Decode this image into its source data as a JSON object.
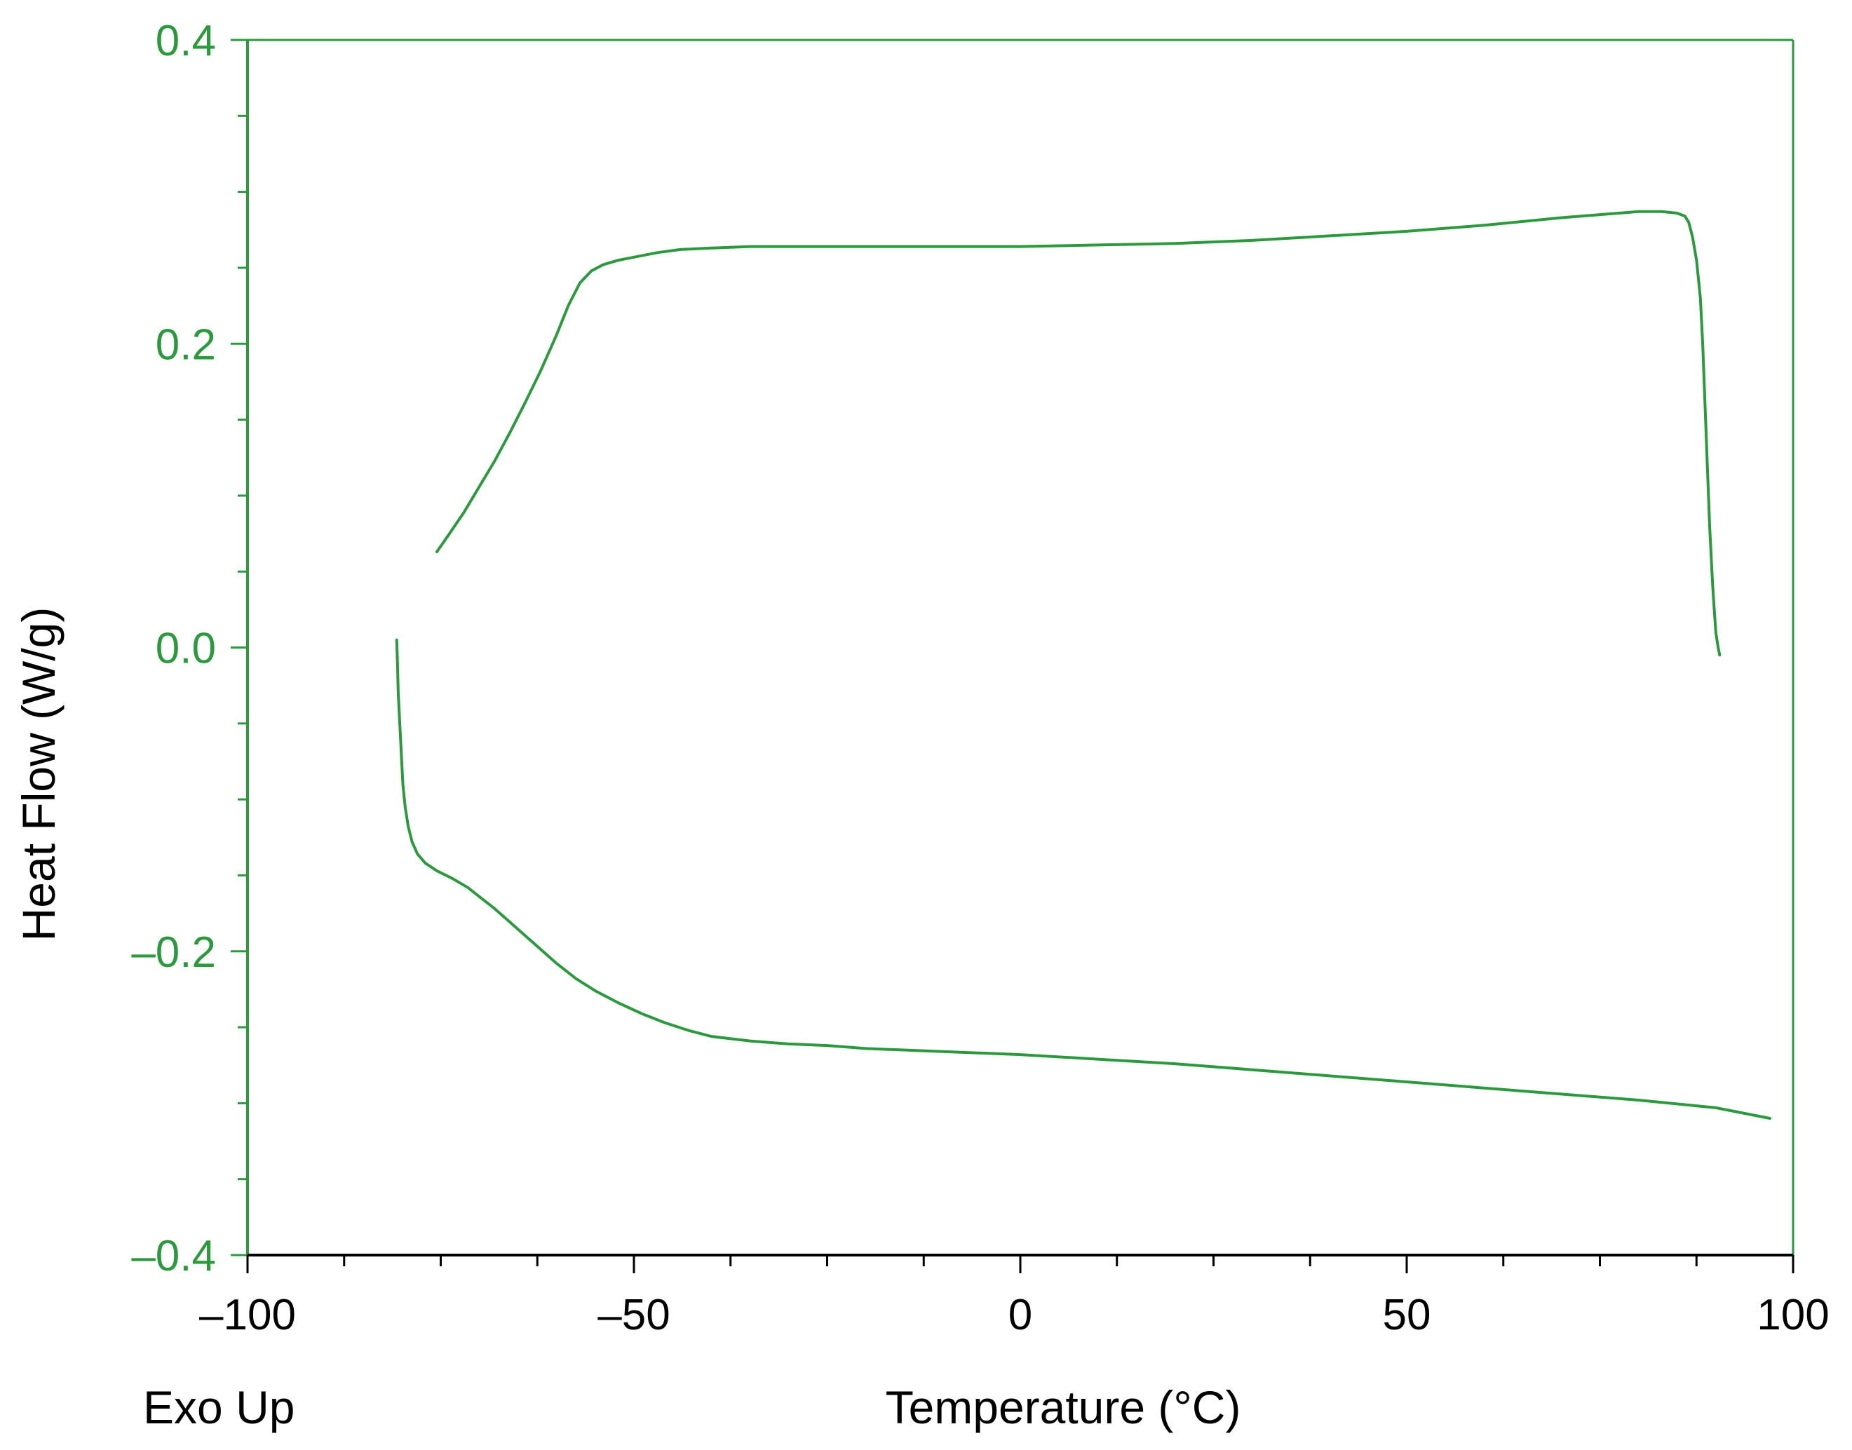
{
  "chart_data": {
    "type": "line",
    "title": "",
    "xlabel": "Temperature  (°C)",
    "ylabel": "Heat Flow (W/g)",
    "annotation": "Exo Up",
    "xlim": [
      -100,
      100
    ],
    "ylim": [
      -0.4,
      0.4
    ],
    "x_ticks": [
      -100,
      -50,
      0,
      50,
      100
    ],
    "x_tick_labels": [
      "–100",
      "–50",
      "0",
      "50",
      "100"
    ],
    "y_ticks": [
      0.4,
      0.2,
      0.0,
      -0.2,
      -0.4
    ],
    "y_tick_labels": [
      "0.4",
      "0.2",
      "0.0",
      "–0.2",
      "–0.4"
    ],
    "grid": false,
    "legend": "none",
    "colors": {
      "curve": "#2a9a3c",
      "y_axis": "#2a9a3c",
      "x_axis": "#000000",
      "frame": "#2a9a3c"
    },
    "series": [
      {
        "x": [
          -80.7,
          -80.6,
          -80.5,
          -80.3,
          -80.1,
          -79.9,
          -79.6,
          -79.2,
          -78.7,
          -78.0,
          -77.0,
          -75.5,
          -73.5,
          -71.5,
          -70.0,
          -68.0,
          -66.0,
          -64.0,
          -62.0,
          -60.0,
          -57.5,
          -55.0,
          -52.0,
          -49.0,
          -46.0,
          -43.0,
          -40.0,
          -35.0,
          -30.0,
          -25.0,
          -20.0,
          -10.0,
          0.0,
          10.0,
          20.0,
          30.0,
          40.0,
          50.0,
          60.0,
          70.0,
          80.0,
          90.0,
          97.0
        ],
        "y": [
          0.005,
          -0.01,
          -0.03,
          -0.05,
          -0.07,
          -0.09,
          -0.105,
          -0.118,
          -0.128,
          -0.136,
          -0.142,
          -0.147,
          -0.152,
          -0.158,
          -0.164,
          -0.172,
          -0.181,
          -0.19,
          -0.199,
          -0.208,
          -0.218,
          -0.226,
          -0.234,
          -0.241,
          -0.247,
          -0.252,
          -0.256,
          -0.259,
          -0.261,
          -0.262,
          -0.264,
          -0.266,
          -0.268,
          -0.271,
          -0.274,
          -0.278,
          -0.282,
          -0.286,
          -0.29,
          -0.294,
          -0.298,
          -0.303,
          -0.31
        ]
      },
      {
        "x": [
          -75.5,
          -74.0,
          -72.0,
          -70.0,
          -68.0,
          -66.0,
          -64.0,
          -62.0,
          -60.0,
          -58.5,
          -57.0,
          -55.5,
          -54.0,
          -52.0,
          -50.0,
          -47.0,
          -44.0,
          -40.0,
          -35.0,
          -30.0,
          -25.0,
          -20.0,
          -10.0,
          0.0,
          10.0,
          20.0,
          30.0,
          40.0,
          50.0,
          60.0,
          70.0,
          75.0,
          80.0,
          83.0,
          85.0,
          86.0,
          86.5,
          87.0,
          87.5,
          88.0,
          88.3,
          88.6,
          88.9,
          89.2,
          89.6,
          90.0,
          90.3,
          90.5
        ],
        "y": [
          0.063,
          0.074,
          0.089,
          0.106,
          0.123,
          0.142,
          0.162,
          0.183,
          0.206,
          0.225,
          0.24,
          0.248,
          0.252,
          0.255,
          0.257,
          0.26,
          0.262,
          0.263,
          0.264,
          0.264,
          0.264,
          0.264,
          0.264,
          0.264,
          0.265,
          0.266,
          0.268,
          0.271,
          0.274,
          0.278,
          0.283,
          0.285,
          0.287,
          0.287,
          0.286,
          0.284,
          0.28,
          0.27,
          0.255,
          0.23,
          0.2,
          0.16,
          0.12,
          0.08,
          0.04,
          0.01,
          0.0,
          -0.005
        ]
      }
    ]
  }
}
